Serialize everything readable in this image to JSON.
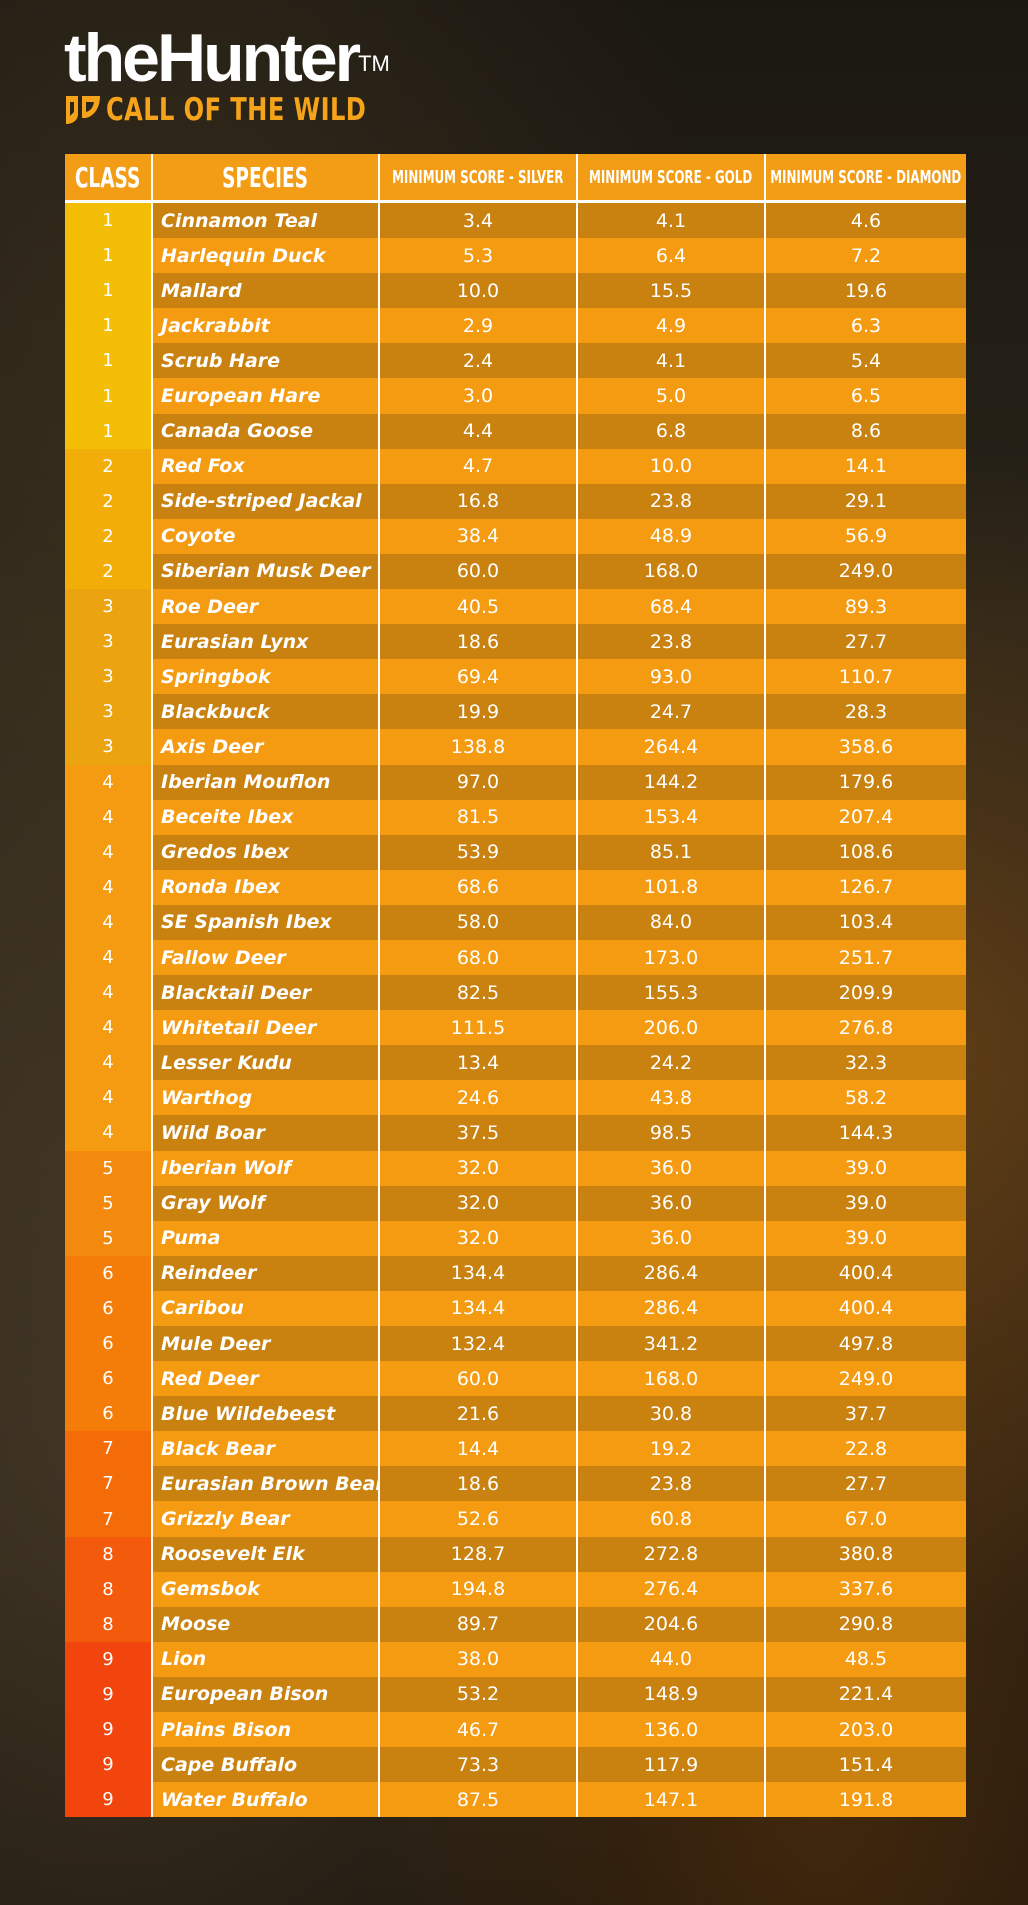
{
  "logo": {
    "title": "theHunter",
    "trademark": "TM",
    "subtitle": "CALL OF THE WILD"
  },
  "table": {
    "headers": {
      "class": "CLASS",
      "species": "SPECIES",
      "silver": "MINIMUM SCORE - SILVER",
      "gold": "MINIMUM SCORE - GOLD",
      "diamond": "MINIMUM SCORE - DIAMOND"
    },
    "class_colors": {
      "1": "#f4bd06",
      "2": "#f2ad08",
      "3": "#eba30f",
      "4": "#f49b12",
      "5": "#f48a0d",
      "6": "#f47d0a",
      "7": "#f46c08",
      "8": "#f45a0b",
      "9": "#f2440d"
    },
    "rows": [
      {
        "class": "1",
        "species": "Cinnamon Teal",
        "silver": "3.4",
        "gold": "4.1",
        "diamond": "4.6"
      },
      {
        "class": "1",
        "species": "Harlequin Duck",
        "silver": "5.3",
        "gold": "6.4",
        "diamond": "7.2"
      },
      {
        "class": "1",
        "species": "Mallard",
        "silver": "10.0",
        "gold": "15.5",
        "diamond": "19.6"
      },
      {
        "class": "1",
        "species": "Jackrabbit",
        "silver": "2.9",
        "gold": "4.9",
        "diamond": "6.3"
      },
      {
        "class": "1",
        "species": "Scrub Hare",
        "silver": "2.4",
        "gold": "4.1",
        "diamond": "5.4"
      },
      {
        "class": "1",
        "species": "European Hare",
        "silver": "3.0",
        "gold": "5.0",
        "diamond": "6.5"
      },
      {
        "class": "1",
        "species": "Canada Goose",
        "silver": "4.4",
        "gold": "6.8",
        "diamond": "8.6"
      },
      {
        "class": "2",
        "species": "Red Fox",
        "silver": "4.7",
        "gold": "10.0",
        "diamond": "14.1"
      },
      {
        "class": "2",
        "species": "Side-striped Jackal",
        "silver": "16.8",
        "gold": "23.8",
        "diamond": "29.1"
      },
      {
        "class": "2",
        "species": "Coyote",
        "silver": "38.4",
        "gold": "48.9",
        "diamond": "56.9"
      },
      {
        "class": "2",
        "species": "Siberian Musk Deer",
        "silver": "60.0",
        "gold": "168.0",
        "diamond": "249.0"
      },
      {
        "class": "3",
        "species": "Roe Deer",
        "silver": "40.5",
        "gold": "68.4",
        "diamond": "89.3"
      },
      {
        "class": "3",
        "species": "Eurasian Lynx",
        "silver": "18.6",
        "gold": "23.8",
        "diamond": "27.7"
      },
      {
        "class": "3",
        "species": "Springbok",
        "silver": "69.4",
        "gold": "93.0",
        "diamond": "110.7"
      },
      {
        "class": "3",
        "species": "Blackbuck",
        "silver": "19.9",
        "gold": "24.7",
        "diamond": "28.3"
      },
      {
        "class": "3",
        "species": "Axis Deer",
        "silver": "138.8",
        "gold": "264.4",
        "diamond": "358.6"
      },
      {
        "class": "4",
        "species": "Iberian Mouflon",
        "silver": "97.0",
        "gold": "144.2",
        "diamond": "179.6"
      },
      {
        "class": "4",
        "species": "Beceite Ibex",
        "silver": "81.5",
        "gold": "153.4",
        "diamond": "207.4"
      },
      {
        "class": "4",
        "species": "Gredos Ibex",
        "silver": "53.9",
        "gold": "85.1",
        "diamond": "108.6"
      },
      {
        "class": "4",
        "species": "Ronda Ibex",
        "silver": "68.6",
        "gold": "101.8",
        "diamond": "126.7"
      },
      {
        "class": "4",
        "species": "SE Spanish Ibex",
        "silver": "58.0",
        "gold": "84.0",
        "diamond": "103.4"
      },
      {
        "class": "4",
        "species": "Fallow Deer",
        "silver": "68.0",
        "gold": "173.0",
        "diamond": "251.7"
      },
      {
        "class": "4",
        "species": "Blacktail Deer",
        "silver": "82.5",
        "gold": "155.3",
        "diamond": "209.9"
      },
      {
        "class": "4",
        "species": "Whitetail Deer",
        "silver": "111.5",
        "gold": "206.0",
        "diamond": "276.8"
      },
      {
        "class": "4",
        "species": "Lesser Kudu",
        "silver": "13.4",
        "gold": "24.2",
        "diamond": "32.3"
      },
      {
        "class": "4",
        "species": "Warthog",
        "silver": "24.6",
        "gold": "43.8",
        "diamond": "58.2"
      },
      {
        "class": "4",
        "species": "Wild Boar",
        "silver": "37.5",
        "gold": "98.5",
        "diamond": "144.3"
      },
      {
        "class": "5",
        "species": "Iberian Wolf",
        "silver": "32.0",
        "gold": "36.0",
        "diamond": "39.0"
      },
      {
        "class": "5",
        "species": "Gray Wolf",
        "silver": "32.0",
        "gold": "36.0",
        "diamond": "39.0"
      },
      {
        "class": "5",
        "species": "Puma",
        "silver": "32.0",
        "gold": "36.0",
        "diamond": "39.0"
      },
      {
        "class": "6",
        "species": "Reindeer",
        "silver": "134.4",
        "gold": "286.4",
        "diamond": "400.4"
      },
      {
        "class": "6",
        "species": "Caribou",
        "silver": "134.4",
        "gold": "286.4",
        "diamond": "400.4"
      },
      {
        "class": "6",
        "species": "Mule Deer",
        "silver": "132.4",
        "gold": "341.2",
        "diamond": "497.8"
      },
      {
        "class": "6",
        "species": "Red Deer",
        "silver": "60.0",
        "gold": "168.0",
        "diamond": "249.0"
      },
      {
        "class": "6",
        "species": "Blue Wildebeest",
        "silver": "21.6",
        "gold": "30.8",
        "diamond": "37.7"
      },
      {
        "class": "7",
        "species": "Black Bear",
        "silver": "14.4",
        "gold": "19.2",
        "diamond": "22.8"
      },
      {
        "class": "7",
        "species": "Eurasian Brown Bear",
        "silver": "18.6",
        "gold": "23.8",
        "diamond": "27.7"
      },
      {
        "class": "7",
        "species": "Grizzly Bear",
        "silver": "52.6",
        "gold": "60.8",
        "diamond": "67.0"
      },
      {
        "class": "8",
        "species": "Roosevelt Elk",
        "silver": "128.7",
        "gold": "272.8",
        "diamond": "380.8"
      },
      {
        "class": "8",
        "species": "Gemsbok",
        "silver": "194.8",
        "gold": "276.4",
        "diamond": "337.6"
      },
      {
        "class": "8",
        "species": "Moose",
        "silver": "89.7",
        "gold": "204.6",
        "diamond": "290.8"
      },
      {
        "class": "9",
        "species": "Lion",
        "silver": "38.0",
        "gold": "44.0",
        "diamond": "48.5"
      },
      {
        "class": "9",
        "species": "European Bison",
        "silver": "53.2",
        "gold": "148.9",
        "diamond": "221.4"
      },
      {
        "class": "9",
        "species": "Plains Bison",
        "silver": "46.7",
        "gold": "136.0",
        "diamond": "203.0"
      },
      {
        "class": "9",
        "species": "Cape Buffalo",
        "silver": "73.3",
        "gold": "117.9",
        "diamond": "151.4"
      },
      {
        "class": "9",
        "species": "Water Buffalo",
        "silver": "87.5",
        "gold": "147.1",
        "diamond": "191.8"
      }
    ]
  }
}
